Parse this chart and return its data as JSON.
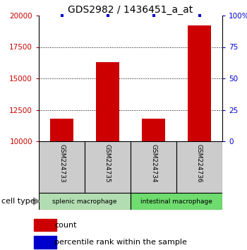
{
  "title": "GDS2982 / 1436451_a_at",
  "samples": [
    "GSM224733",
    "GSM224735",
    "GSM224734",
    "GSM224736"
  ],
  "counts": [
    11800,
    16300,
    11800,
    19200
  ],
  "percentile_ranks": [
    100,
    100,
    100,
    100
  ],
  "ylim_left": [
    10000,
    20000
  ],
  "ylim_right": [
    0,
    100
  ],
  "yticks_left": [
    10000,
    12500,
    15000,
    17500,
    20000
  ],
  "yticks_right": [
    0,
    25,
    50,
    75,
    100
  ],
  "ytick_labels_left": [
    "10000",
    "12500",
    "15000",
    "17500",
    "20000"
  ],
  "ytick_labels_right": [
    "0",
    "25",
    "50",
    "75",
    "100%"
  ],
  "cell_type_groups": [
    {
      "label": "splenic macrophage",
      "indices": [
        0,
        1
      ],
      "color": "#b2ddb2"
    },
    {
      "label": "intestinal macrophage",
      "indices": [
        2,
        3
      ],
      "color": "#6edc6e"
    }
  ],
  "bar_color": "#cc0000",
  "scatter_color": "#0000cc",
  "bar_width": 0.5,
  "background_color": "#ffffff",
  "grid_color": "#000000",
  "title_fontsize": 10,
  "tick_fontsize": 7.5,
  "legend_fontsize": 8,
  "sample_box_color": "#cccccc",
  "cell_type_label": "cell type"
}
